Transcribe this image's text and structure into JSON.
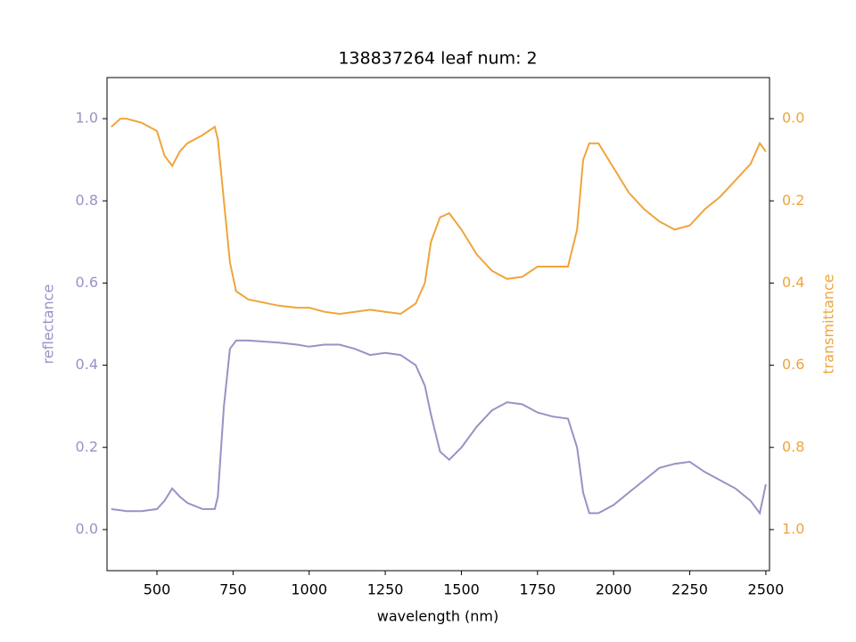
{
  "chart_data": {
    "type": "line",
    "title": "138837264 leaf num: 2",
    "xlabel": "wavelength (nm)",
    "ylabel": "reflectance",
    "y2label": "transmittance",
    "x": [
      350,
      380,
      400,
      450,
      500,
      525,
      550,
      575,
      600,
      650,
      690,
      700,
      720,
      740,
      760,
      800,
      900,
      960,
      1000,
      1050,
      1100,
      1150,
      1200,
      1250,
      1300,
      1350,
      1380,
      1400,
      1430,
      1460,
      1500,
      1550,
      1600,
      1650,
      1700,
      1750,
      1800,
      1850,
      1880,
      1900,
      1920,
      1950,
      2000,
      2050,
      2100,
      2150,
      2200,
      2250,
      2300,
      2350,
      2400,
      2450,
      2480,
      2500
    ],
    "series": [
      {
        "name": "reflectance",
        "color": "#9892c6",
        "axis": "y",
        "values": [
          0.05,
          0.047,
          0.045,
          0.045,
          0.05,
          0.07,
          0.1,
          0.08,
          0.065,
          0.05,
          0.05,
          0.08,
          0.3,
          0.44,
          0.46,
          0.46,
          0.455,
          0.45,
          0.445,
          0.45,
          0.45,
          0.44,
          0.425,
          0.43,
          0.425,
          0.4,
          0.35,
          0.28,
          0.19,
          0.17,
          0.2,
          0.25,
          0.29,
          0.31,
          0.305,
          0.285,
          0.275,
          0.27,
          0.2,
          0.09,
          0.04,
          0.04,
          0.06,
          0.09,
          0.12,
          0.15,
          0.16,
          0.165,
          0.14,
          0.12,
          0.1,
          0.07,
          0.04,
          0.11
        ]
      },
      {
        "name": "transmittance",
        "color": "#f0a43c",
        "axis": "y2",
        "values": [
          0.02,
          0.0,
          0.0,
          0.01,
          0.03,
          0.09,
          0.115,
          0.08,
          0.06,
          0.04,
          0.02,
          0.05,
          0.2,
          0.35,
          0.42,
          0.44,
          0.455,
          0.46,
          0.46,
          0.47,
          0.475,
          0.47,
          0.465,
          0.47,
          0.475,
          0.45,
          0.4,
          0.3,
          0.24,
          0.23,
          0.27,
          0.33,
          0.37,
          0.39,
          0.385,
          0.36,
          0.36,
          0.36,
          0.27,
          0.1,
          0.06,
          0.06,
          0.12,
          0.18,
          0.22,
          0.25,
          0.27,
          0.26,
          0.22,
          0.19,
          0.15,
          0.11,
          0.06,
          0.08
        ]
      }
    ],
    "xlim": [
      336,
      2512
    ],
    "xticks": [
      500,
      750,
      1000,
      1250,
      1500,
      1750,
      2000,
      2250,
      2500
    ],
    "ylim": [
      -0.1,
      1.1
    ],
    "yticks": [
      {
        "value": 0,
        "label": "0.0"
      },
      0.2,
      0.4,
      0.6,
      0.8,
      {
        "value": 1,
        "label": "1.0"
      }
    ],
    "y2lim": [
      1.1,
      -0.1
    ],
    "y2ticks": [
      {
        "value": 0,
        "label": "0.0"
      },
      0.2,
      0.4,
      0.6,
      0.8,
      {
        "value": 1,
        "label": "1.0"
      }
    ]
  }
}
